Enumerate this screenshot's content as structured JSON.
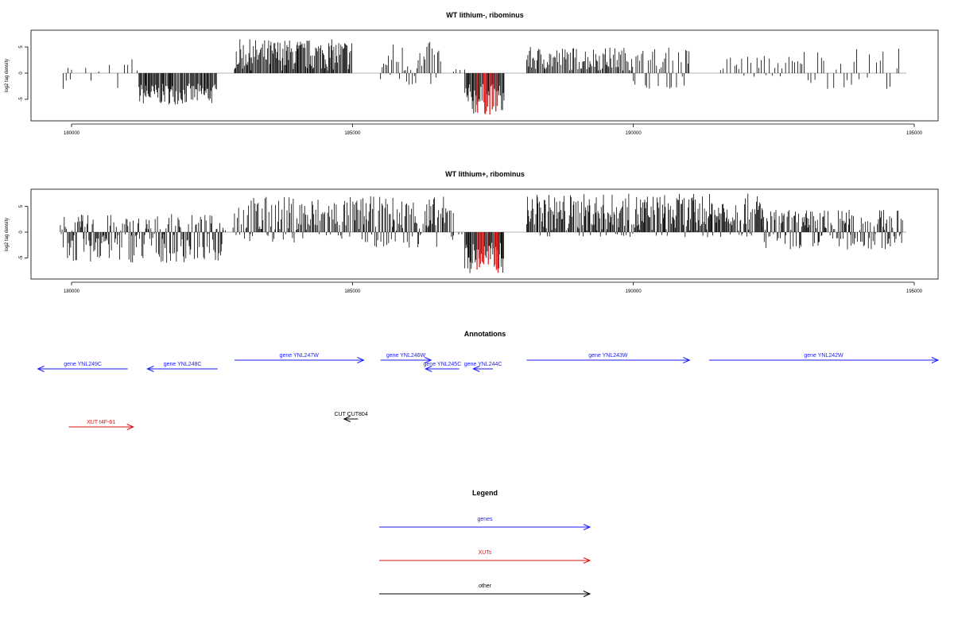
{
  "colors": {
    "density": "#000000",
    "highlight": "#e03030",
    "gene": "#1a1aff",
    "xut": "#e01010",
    "other": "#000000",
    "baseline": "#9a9a9a"
  },
  "chart_data": [
    {
      "type": "bar",
      "title": "WT lithium-, ribominus",
      "ylabel": "log2 tag density",
      "xlim": [
        179200,
        195500
      ],
      "ylim": [
        -8.5,
        8.5
      ],
      "x_ticks": [
        180000,
        185000,
        190000,
        195000
      ],
      "x_tick_labels": [
        "180000",
        "185000",
        "190000",
        "195000"
      ],
      "y_ticks": [
        -5,
        0,
        5
      ],
      "y_tick_labels": [
        "-5",
        "0",
        "5"
      ],
      "highlight_range": [
        187200,
        187600
      ],
      "segments": [
        {
          "x": [
            179850,
            180000
          ],
          "y": [
            -3,
            2.5
          ],
          "density": 0.35
        },
        {
          "x": [
            180000,
            181000
          ],
          "y": [
            -3.5,
            2
          ],
          "density": 0.12
        },
        {
          "x": [
            181000,
            181200
          ],
          "y": [
            -1,
            3
          ],
          "density": 0.2
        },
        {
          "x": [
            181200,
            182600
          ],
          "y": [
            -6,
            -2
          ],
          "density": 0.9
        },
        {
          "x": [
            182900,
            185000
          ],
          "y": [
            0.5,
            6.5
          ],
          "density": 0.9
        },
        {
          "x": [
            185500,
            186600
          ],
          "y": [
            -3,
            6
          ],
          "density": 0.5
        },
        {
          "x": [
            186800,
            187000
          ],
          "y": [
            0,
            1
          ],
          "density": 0.2
        },
        {
          "x": [
            187000,
            187700
          ],
          "y": [
            -8,
            -2
          ],
          "density": 1.0
        },
        {
          "x": [
            188100,
            190000
          ],
          "y": [
            0.5,
            5
          ],
          "density": 0.7
        },
        {
          "x": [
            190000,
            191000
          ],
          "y": [
            -3,
            5
          ],
          "density": 0.5
        },
        {
          "x": [
            191500,
            193000
          ],
          "y": [
            -1,
            3.5
          ],
          "density": 0.3
        },
        {
          "x": [
            193000,
            194800
          ],
          "y": [
            -3,
            5
          ],
          "density": 0.25
        }
      ]
    },
    {
      "type": "bar",
      "title": "WT lithium+, ribominus",
      "ylabel": "log2 tag density",
      "xlim": [
        179200,
        195500
      ],
      "ylim": [
        -8.5,
        8.5
      ],
      "x_ticks": [
        180000,
        185000,
        190000,
        195000
      ],
      "x_tick_labels": [
        "180000",
        "185000",
        "190000",
        "195000"
      ],
      "y_ticks": [
        -5,
        0,
        5
      ],
      "y_tick_labels": [
        "-5",
        "0",
        "5"
      ],
      "highlight_range": [
        187200,
        187600
      ],
      "segments": [
        {
          "x": [
            179800,
            182700
          ],
          "y": [
            -6,
            3.5
          ],
          "density": 0.9
        },
        {
          "x": [
            182700,
            182900
          ],
          "y": [
            0,
            1.5
          ],
          "density": 0.3
        },
        {
          "x": [
            182900,
            185200
          ],
          "y": [
            -2,
            7
          ],
          "density": 0.8
        },
        {
          "x": [
            185200,
            186800
          ],
          "y": [
            -3,
            7
          ],
          "density": 0.9
        },
        {
          "x": [
            186800,
            187000
          ],
          "y": [
            -1,
            1
          ],
          "density": 0.3
        },
        {
          "x": [
            187000,
            187700
          ],
          "y": [
            -8,
            -2
          ],
          "density": 1.0
        },
        {
          "x": [
            188100,
            192300
          ],
          "y": [
            -1,
            7.5
          ],
          "density": 1.0
        },
        {
          "x": [
            192300,
            194800
          ],
          "y": [
            -3.5,
            4.5
          ],
          "density": 0.9
        }
      ]
    }
  ],
  "annotations": {
    "title": "Annotations",
    "features": [
      {
        "label": "gene YNL249C",
        "start": 181000,
        "end": 179400,
        "row": 1,
        "kind": "gene"
      },
      {
        "label": "gene YNL248C",
        "start": 182600,
        "end": 181350,
        "row": 1,
        "kind": "gene"
      },
      {
        "label": "gene YNL247W",
        "start": 182900,
        "end": 185200,
        "row": 0,
        "kind": "gene"
      },
      {
        "label": "gene YNL246W",
        "start": 185500,
        "end": 186400,
        "row": 0,
        "kind": "gene"
      },
      {
        "label": "gene YNL245C",
        "start": 186900,
        "end": 186300,
        "row": 1,
        "kind": "gene"
      },
      {
        "label": "gene YNL244C",
        "start": 187500,
        "end": 187150,
        "row": 1,
        "kind": "gene"
      },
      {
        "label": "gene YNL243W",
        "start": 188100,
        "end": 191000,
        "row": 0,
        "kind": "gene"
      },
      {
        "label": "gene YNL242W",
        "start": 191350,
        "end": 195500,
        "row": 0,
        "kind": "gene"
      },
      {
        "label": "CUT CUT804",
        "start": 185100,
        "end": 184850,
        "row": 3,
        "kind": "other"
      },
      {
        "label": "XUT t4F-61",
        "start": 179950,
        "end": 181100,
        "row": 4,
        "kind": "xut"
      }
    ]
  },
  "legend": {
    "title": "Legend",
    "items": [
      {
        "label": "genes",
        "kind": "gene"
      },
      {
        "label": "XUTs",
        "kind": "xut"
      },
      {
        "label": "other",
        "kind": "other"
      }
    ]
  }
}
